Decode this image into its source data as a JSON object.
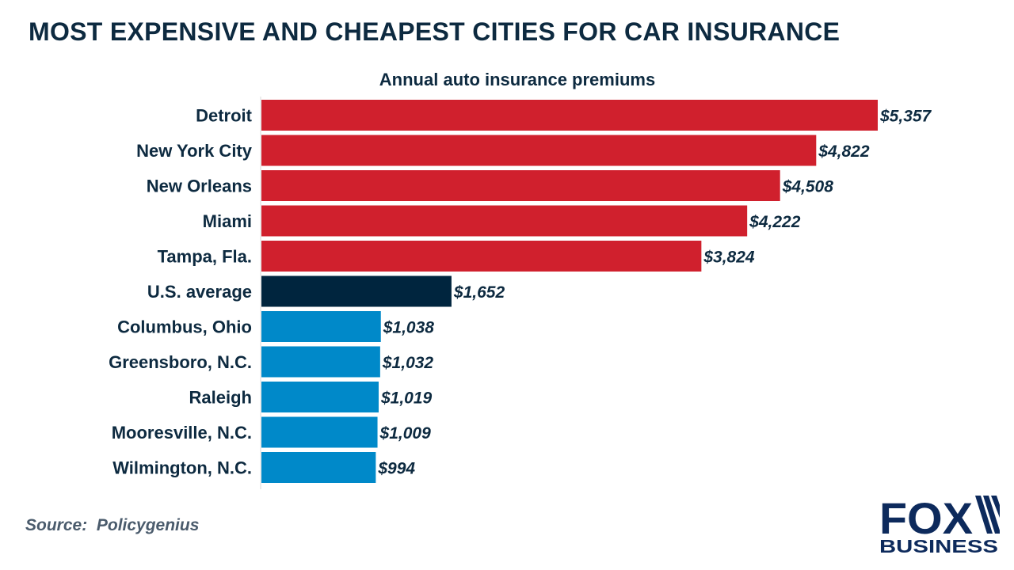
{
  "header": {
    "title": "MOST EXPENSIVE AND CHEAPEST CITIES FOR CAR INSURANCE"
  },
  "colors": {
    "expensive": "#d0202d",
    "average": "#00253e",
    "cheapest": "#0089c9",
    "text": "#0d2a40",
    "logo": "#0d2a5c"
  },
  "chart_data": {
    "type": "bar",
    "orientation": "horizontal",
    "title": "Annual auto insurance premiums",
    "xlabel": "",
    "ylabel": "",
    "xlim": [
      0,
      5357
    ],
    "grid": false,
    "categories": [
      "Detroit",
      "New York City",
      "New Orleans",
      "Miami",
      "Tampa, Fla.",
      "U.S. average",
      "Columbus, Ohio",
      "Greensboro, N.C.",
      "Raleigh",
      "Mooresville, N.C.",
      "Wilmington, N.C."
    ],
    "values": [
      5357,
      4822,
      4508,
      4222,
      3824,
      1652,
      1038,
      1032,
      1019,
      1009,
      994
    ],
    "value_labels": [
      "$5,357",
      "$4,822",
      "$4,508",
      "$4,222",
      "$3,824",
      "$1,652",
      "$1,038",
      "$1,032",
      "$1,019",
      "$1,009",
      "$994"
    ],
    "groups": [
      "expensive",
      "expensive",
      "expensive",
      "expensive",
      "expensive",
      "average",
      "cheapest",
      "cheapest",
      "cheapest",
      "cheapest",
      "cheapest"
    ]
  },
  "footer": {
    "source": "Source:  Policygenius"
  },
  "logo": {
    "top": "FOX",
    "bottom": "BUSINESS"
  }
}
